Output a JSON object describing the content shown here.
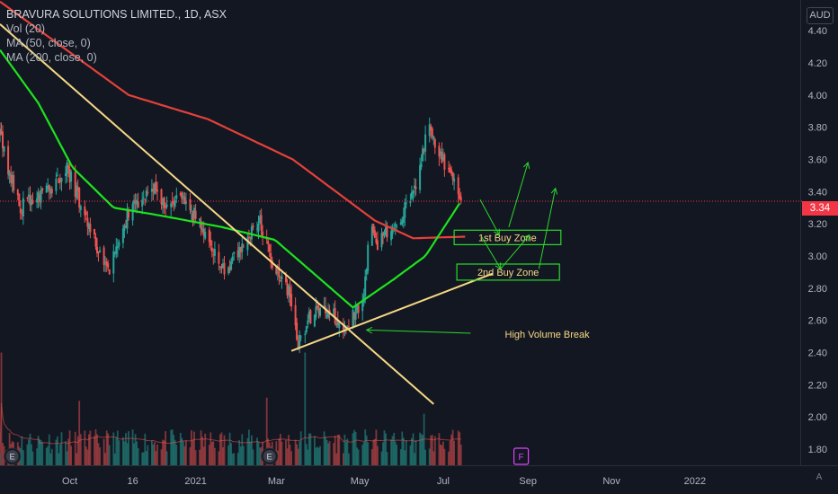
{
  "legend": {
    "title": "BRAVURA SOLUTIONS LIMITED., 1D, ASX",
    "vol": "Vol (20)",
    "ma50": "MA (50, close, 0)",
    "ma200": "MA (200, close, 0)"
  },
  "currency": "AUD",
  "last_price": "3.34",
  "corner_button": "A",
  "event_markers": [
    {
      "label": "E",
      "x": "2020-08-20",
      "color": "#2962ff"
    },
    {
      "label": "E",
      "x": "2021-02-24",
      "color": "#2962ff"
    },
    {
      "label": "F",
      "x": "2021-08-27",
      "color": "#e040fb"
    }
  ],
  "colors": {
    "background": "#131722",
    "up": "#26a69a",
    "down": "#ef5350",
    "ma50": "#1ee31e",
    "ma200": "#e5413a",
    "trendline": "#f7d985",
    "annotation": "#2bd92b",
    "zone_text": "#f7d985"
  },
  "chart_data": {
    "type": "candlestick",
    "x_axis": {
      "type": "date",
      "range": [
        "2020-08-11",
        "2022-03-19"
      ],
      "ticks": [
        {
          "label": "Oct",
          "date": "2020-10-01"
        },
        {
          "label": "16",
          "date": "2020-11-16"
        },
        {
          "label": "2021",
          "date": "2021-01-01"
        },
        {
          "label": "Mar",
          "date": "2021-03-01"
        },
        {
          "label": "May",
          "date": "2021-05-01"
        },
        {
          "label": "Jul",
          "date": "2021-07-01"
        },
        {
          "label": "Sep",
          "date": "2021-09-01"
        },
        {
          "label": "Nov",
          "date": "2021-11-01"
        },
        {
          "label": "2022",
          "date": "2022-01-01"
        }
      ]
    },
    "y_axis": {
      "range": [
        1.7,
        4.59
      ],
      "ticks": [
        "1.80",
        "2.00",
        "2.20",
        "2.40",
        "2.60",
        "2.80",
        "3.00",
        "3.20",
        "3.40",
        "3.60",
        "3.80",
        "4.00",
        "4.20",
        "4.40"
      ]
    },
    "grid": false,
    "price_keypoints": [
      {
        "date": "2020-08-11",
        "close": 3.75
      },
      {
        "date": "2020-08-25",
        "close": 3.3
      },
      {
        "date": "2020-09-15",
        "close": 3.4
      },
      {
        "date": "2020-09-29",
        "close": 3.55
      },
      {
        "date": "2020-10-12",
        "close": 3.25
      },
      {
        "date": "2020-10-29",
        "close": 2.88
      },
      {
        "date": "2020-11-12",
        "close": 3.25
      },
      {
        "date": "2020-12-01",
        "close": 3.45
      },
      {
        "date": "2020-12-10",
        "close": 3.3
      },
      {
        "date": "2020-12-23",
        "close": 3.35
      },
      {
        "date": "2021-01-06",
        "close": 3.18
      },
      {
        "date": "2021-01-22",
        "close": 2.9
      },
      {
        "date": "2021-02-06",
        "close": 3.1
      },
      {
        "date": "2021-02-17",
        "close": 3.22
      },
      {
        "date": "2021-02-28",
        "close": 2.88
      },
      {
        "date": "2021-03-10",
        "close": 2.78
      },
      {
        "date": "2021-03-17",
        "close": 2.45
      },
      {
        "date": "2021-03-27",
        "close": 2.65
      },
      {
        "date": "2021-04-08",
        "close": 2.68
      },
      {
        "date": "2021-04-19",
        "close": 2.55
      },
      {
        "date": "2021-05-03",
        "close": 2.7
      },
      {
        "date": "2021-05-09",
        "close": 3.2
      },
      {
        "date": "2021-05-14",
        "close": 3.08
      },
      {
        "date": "2021-05-28",
        "close": 3.2
      },
      {
        "date": "2021-06-10",
        "close": 3.4
      },
      {
        "date": "2021-06-21",
        "close": 3.85
      },
      {
        "date": "2021-06-26",
        "close": 3.65
      },
      {
        "date": "2021-07-08",
        "close": 3.5
      },
      {
        "date": "2021-07-14",
        "close": 3.34
      }
    ],
    "ma50_keypoints": [
      {
        "date": "2020-08-11",
        "value": 4.28
      },
      {
        "date": "2020-09-08",
        "value": 3.95
      },
      {
        "date": "2020-10-03",
        "value": 3.55
      },
      {
        "date": "2020-11-02",
        "value": 3.3
      },
      {
        "date": "2020-12-07",
        "value": 3.25
      },
      {
        "date": "2021-01-20",
        "value": 3.18
      },
      {
        "date": "2021-02-28",
        "value": 3.1
      },
      {
        "date": "2021-04-03",
        "value": 2.85
      },
      {
        "date": "2021-04-26",
        "value": 2.68
      },
      {
        "date": "2021-05-25",
        "value": 2.85
      },
      {
        "date": "2021-06-18",
        "value": 3.0
      },
      {
        "date": "2021-07-14",
        "value": 3.34
      }
    ],
    "ma200_keypoints": [
      {
        "date": "2020-08-11",
        "value": 4.58
      },
      {
        "date": "2020-11-13",
        "value": 4.0
      },
      {
        "date": "2021-01-10",
        "value": 3.85
      },
      {
        "date": "2021-03-13",
        "value": 3.6
      },
      {
        "date": "2021-05-12",
        "value": 3.22
      },
      {
        "date": "2021-06-09",
        "value": 3.11
      },
      {
        "date": "2021-07-17",
        "value": 3.12
      }
    ],
    "volume": {
      "baseline_price": 1.75,
      "typical_top_price": 1.9,
      "spikes": [
        {
          "date": "2020-08-12",
          "top_price": 2.4
        },
        {
          "date": "2020-10-08",
          "top_price": 2.1
        },
        {
          "date": "2021-02-14",
          "top_price": 2.18
        },
        {
          "date": "2021-02-22",
          "top_price": 2.12
        },
        {
          "date": "2021-03-22",
          "top_price": 2.4
        },
        {
          "date": "2021-05-02",
          "top_price": 2.03
        },
        {
          "date": "2021-06-17",
          "top_price": 2.02
        }
      ]
    },
    "drawings": {
      "trendlines": [
        {
          "from": {
            "date": "2020-08-11",
            "price": 4.44
          },
          "to": {
            "date": "2021-06-24",
            "price": 2.08
          }
        },
        {
          "from": {
            "date": "2021-03-12",
            "price": 2.41
          },
          "to": {
            "date": "2021-08-06",
            "price": 2.89
          }
        }
      ],
      "zones": [
        {
          "label": "1st Buy Zone",
          "from": {
            "date": "2021-07-09",
            "price": 3.16
          },
          "to": {
            "date": "2021-09-25",
            "price": 3.07
          }
        },
        {
          "label": "2nd Buy Zone",
          "from": {
            "date": "2021-07-11",
            "price": 2.95
          },
          "to": {
            "date": "2021-09-24",
            "price": 2.85
          }
        }
      ],
      "arrows": [
        {
          "from": {
            "date": "2021-07-28",
            "price": 3.35
          },
          "to": {
            "date": "2021-08-11",
            "price": 3.13
          }
        },
        {
          "from": {
            "date": "2021-08-18",
            "price": 3.18
          },
          "to": {
            "date": "2021-09-01",
            "price": 3.58
          }
        },
        {
          "from": {
            "date": "2021-07-29",
            "price": 3.12
          },
          "to": {
            "date": "2021-08-12",
            "price": 2.92
          }
        },
        {
          "from": {
            "date": "2021-08-12",
            "price": 2.92
          },
          "to": {
            "date": "2021-09-02",
            "price": 3.13
          }
        },
        {
          "from": {
            "date": "2021-09-09",
            "price": 2.92
          },
          "to": {
            "date": "2021-09-21",
            "price": 3.42
          }
        },
        {
          "from": {
            "date": "2021-07-21",
            "price": 2.52
          },
          "to": {
            "date": "2021-05-06",
            "price": 2.54
          }
        }
      ],
      "texts": [
        {
          "label": "High Volume Break",
          "date": "2021-07-29",
          "price": 2.52
        }
      ]
    },
    "last_price_line": 3.34
  }
}
